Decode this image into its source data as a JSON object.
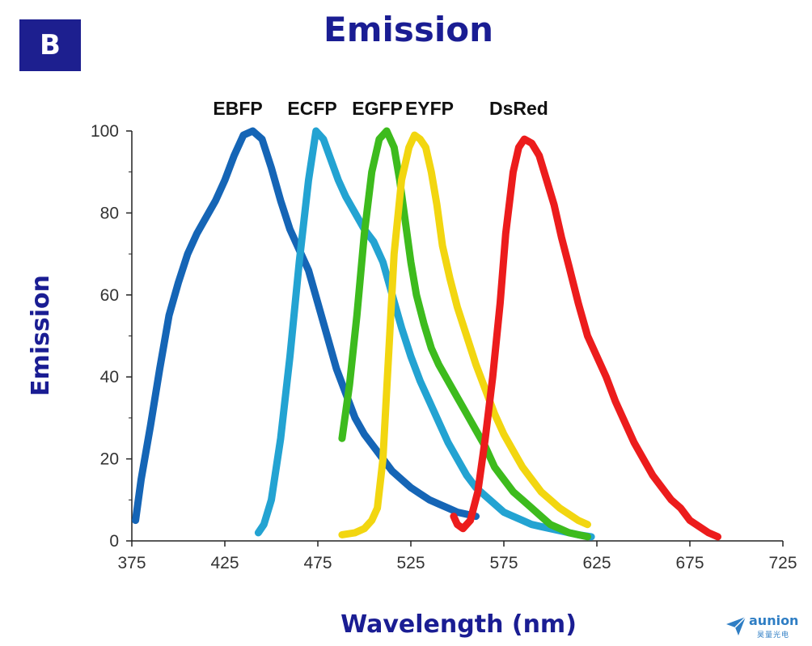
{
  "panel_label": "B",
  "watermark": {
    "brand": "aunion",
    "subtitle": "昊量光电"
  },
  "colors": {
    "title": "#1a1d93",
    "axis_label": "#1a1d93",
    "badge": "#1d1f8f"
  },
  "chart_data": {
    "type": "line",
    "title": "Emission",
    "xlabel": "Wavelength (nm)",
    "ylabel": "Emission",
    "xlim": [
      375,
      725
    ],
    "ylim": [
      0,
      100
    ],
    "xticks": [
      375,
      425,
      475,
      525,
      575,
      625,
      675,
      725
    ],
    "yticks": [
      0,
      20,
      40,
      60,
      80,
      100
    ],
    "grid": false,
    "legend": "peak-labels-top",
    "series": [
      {
        "name": "EBFP",
        "color": "#1565b6",
        "label_x": 432,
        "points": [
          [
            377,
            5
          ],
          [
            380,
            15
          ],
          [
            385,
            28
          ],
          [
            390,
            42
          ],
          [
            395,
            55
          ],
          [
            400,
            63
          ],
          [
            405,
            70
          ],
          [
            410,
            75
          ],
          [
            415,
            79
          ],
          [
            420,
            83
          ],
          [
            425,
            88
          ],
          [
            430,
            94
          ],
          [
            435,
            99
          ],
          [
            440,
            100
          ],
          [
            445,
            98
          ],
          [
            450,
            91
          ],
          [
            455,
            83
          ],
          [
            460,
            76
          ],
          [
            465,
            71
          ],
          [
            470,
            66
          ],
          [
            475,
            58
          ],
          [
            480,
            50
          ],
          [
            485,
            42
          ],
          [
            490,
            36
          ],
          [
            495,
            30
          ],
          [
            500,
            26
          ],
          [
            505,
            23
          ],
          [
            510,
            20
          ],
          [
            515,
            17
          ],
          [
            520,
            15
          ],
          [
            525,
            13
          ],
          [
            530,
            11.5
          ],
          [
            535,
            10
          ],
          [
            540,
            9
          ],
          [
            545,
            8
          ],
          [
            550,
            7
          ],
          [
            555,
            6.5
          ],
          [
            560,
            6
          ]
        ]
      },
      {
        "name": "ECFP",
        "color": "#23a3d2",
        "label_x": 472,
        "points": [
          [
            443,
            2
          ],
          [
            446,
            4
          ],
          [
            450,
            10
          ],
          [
            455,
            25
          ],
          [
            460,
            45
          ],
          [
            465,
            68
          ],
          [
            470,
            88
          ],
          [
            474,
            100
          ],
          [
            478,
            98
          ],
          [
            482,
            93
          ],
          [
            486,
            88
          ],
          [
            490,
            84
          ],
          [
            495,
            80
          ],
          [
            500,
            76
          ],
          [
            505,
            73
          ],
          [
            510,
            68
          ],
          [
            515,
            60
          ],
          [
            520,
            52
          ],
          [
            525,
            45
          ],
          [
            530,
            39
          ],
          [
            535,
            34
          ],
          [
            540,
            29
          ],
          [
            545,
            24
          ],
          [
            550,
            20
          ],
          [
            555,
            16
          ],
          [
            560,
            13
          ],
          [
            565,
            11
          ],
          [
            570,
            9
          ],
          [
            575,
            7
          ],
          [
            580,
            6
          ],
          [
            585,
            5
          ],
          [
            590,
            4
          ],
          [
            595,
            3.5
          ],
          [
            600,
            3
          ],
          [
            605,
            2.5
          ],
          [
            610,
            2
          ],
          [
            615,
            1.5
          ],
          [
            622,
            1
          ]
        ]
      },
      {
        "name": "EGFP",
        "color": "#3dbb1d",
        "label_x": 507,
        "points": [
          [
            488,
            25
          ],
          [
            492,
            38
          ],
          [
            496,
            55
          ],
          [
            500,
            75
          ],
          [
            504,
            90
          ],
          [
            508,
            98
          ],
          [
            512,
            100
          ],
          [
            516,
            96
          ],
          [
            519,
            88
          ],
          [
            522,
            78
          ],
          [
            525,
            68
          ],
          [
            528,
            60
          ],
          [
            532,
            53
          ],
          [
            536,
            47
          ],
          [
            540,
            43
          ],
          [
            545,
            39
          ],
          [
            550,
            35
          ],
          [
            555,
            31
          ],
          [
            560,
            27
          ],
          [
            565,
            23
          ],
          [
            570,
            18
          ],
          [
            575,
            15
          ],
          [
            580,
            12
          ],
          [
            585,
            10
          ],
          [
            590,
            8
          ],
          [
            595,
            6
          ],
          [
            600,
            4
          ],
          [
            605,
            3
          ],
          [
            610,
            2
          ],
          [
            615,
            1.5
          ],
          [
            620,
            1
          ]
        ]
      },
      {
        "name": "EYFP",
        "color": "#f2d610",
        "label_x": 535,
        "points": [
          [
            488,
            1.5
          ],
          [
            495,
            2
          ],
          [
            500,
            3
          ],
          [
            504,
            5
          ],
          [
            507,
            8
          ],
          [
            510,
            20
          ],
          [
            513,
            45
          ],
          [
            516,
            70
          ],
          [
            520,
            88
          ],
          [
            524,
            96
          ],
          [
            527,
            99
          ],
          [
            530,
            98
          ],
          [
            533,
            96
          ],
          [
            536,
            90
          ],
          [
            539,
            82
          ],
          [
            542,
            72
          ],
          [
            546,
            64
          ],
          [
            550,
            57
          ],
          [
            555,
            50
          ],
          [
            560,
            43
          ],
          [
            565,
            37
          ],
          [
            570,
            31
          ],
          [
            575,
            26
          ],
          [
            580,
            22
          ],
          [
            585,
            18
          ],
          [
            590,
            15
          ],
          [
            595,
            12
          ],
          [
            600,
            10
          ],
          [
            605,
            8
          ],
          [
            610,
            6.5
          ],
          [
            615,
            5
          ],
          [
            620,
            4
          ]
        ]
      },
      {
        "name": "DsRed",
        "color": "#ec1c1c",
        "label_x": 583,
        "points": [
          [
            548,
            6
          ],
          [
            550,
            4
          ],
          [
            553,
            3
          ],
          [
            557,
            5
          ],
          [
            561,
            12
          ],
          [
            565,
            25
          ],
          [
            569,
            40
          ],
          [
            573,
            58
          ],
          [
            576,
            75
          ],
          [
            580,
            90
          ],
          [
            583,
            96
          ],
          [
            586,
            98
          ],
          [
            590,
            97
          ],
          [
            594,
            94
          ],
          [
            598,
            88
          ],
          [
            602,
            82
          ],
          [
            606,
            74
          ],
          [
            610,
            67
          ],
          [
            615,
            58
          ],
          [
            620,
            50
          ],
          [
            625,
            45
          ],
          [
            630,
            40
          ],
          [
            635,
            34
          ],
          [
            640,
            29
          ],
          [
            645,
            24
          ],
          [
            650,
            20
          ],
          [
            655,
            16
          ],
          [
            660,
            13
          ],
          [
            665,
            10
          ],
          [
            670,
            8
          ],
          [
            675,
            5
          ],
          [
            680,
            3.5
          ],
          [
            685,
            2
          ],
          [
            690,
            1
          ]
        ]
      }
    ]
  }
}
